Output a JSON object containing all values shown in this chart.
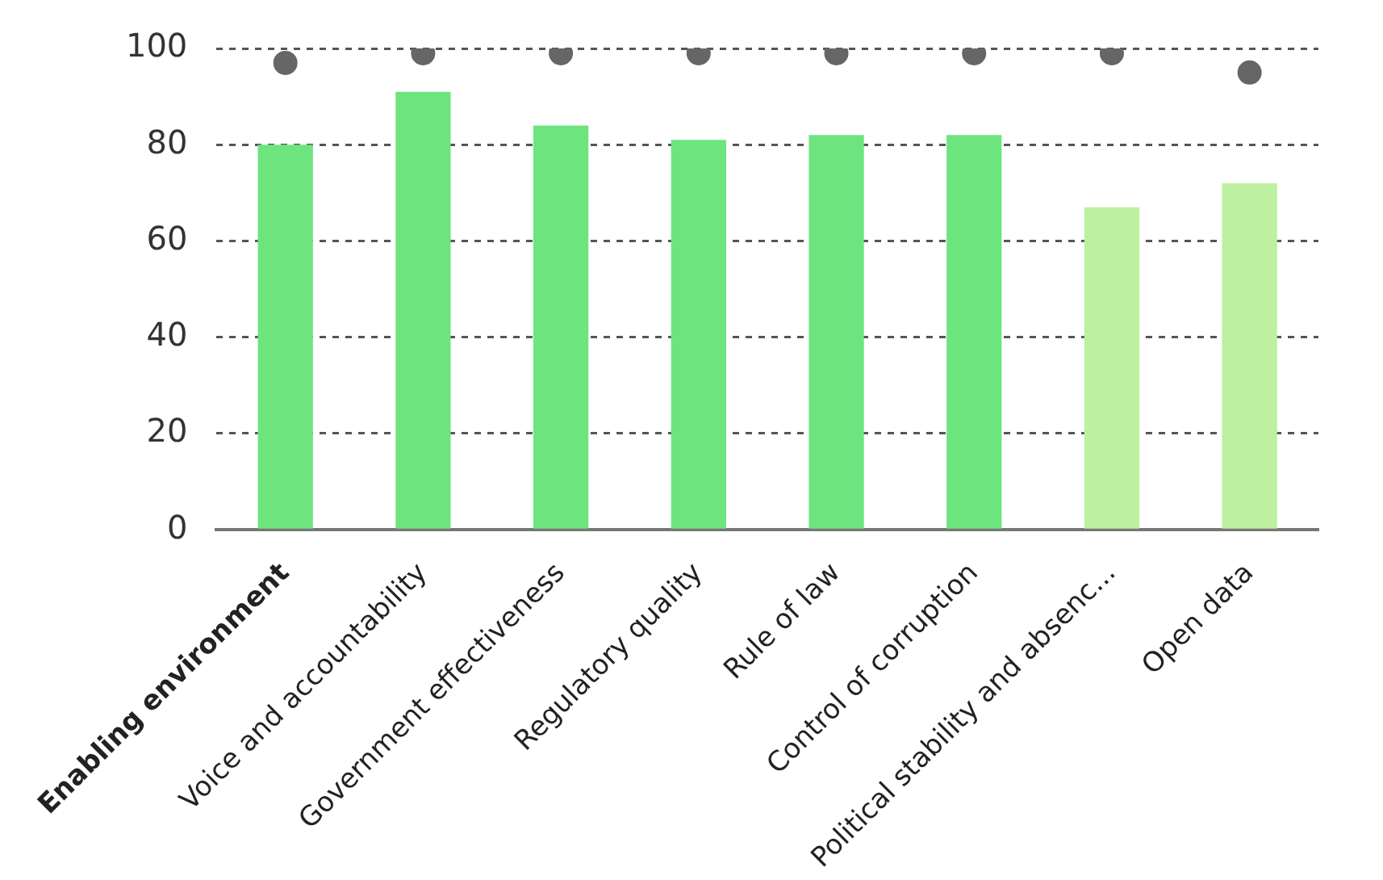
{
  "chart_data": {
    "type": "bar",
    "categories": [
      "Enabling environment",
      "Voice and accountability",
      "Government effectiveness",
      "Regulatory quality",
      "Rule of law",
      "Control of corruption",
      "Political stability and absenc...",
      "Open data"
    ],
    "series": [
      {
        "colors": [
          "#6ee47f",
          "#6ee47f",
          "#6ee47f",
          "#6ee47f",
          "#6ee47f",
          "#6ee47f",
          "#bdf0a0",
          "#bdf0a0"
        ],
        "values": [
          80,
          91,
          84,
          81,
          82,
          82,
          67,
          72
        ]
      },
      {
        "type": "scatter",
        "color": "#666666",
        "x": [
          "Enabling environment",
          "Voice and accountability",
          "Government effectiveness",
          "Regulatory quality",
          "Rule of law",
          "Control of corruption",
          "Political stability and absenc...",
          "Open data"
        ],
        "values": [
          97,
          99,
          99,
          99,
          99,
          99,
          99,
          95
        ]
      }
    ],
    "ylim": [
      0,
      100
    ],
    "yticks": [
      0,
      20,
      40,
      60,
      80,
      100
    ],
    "grid": "y",
    "legend": false,
    "marker": "circle"
  }
}
